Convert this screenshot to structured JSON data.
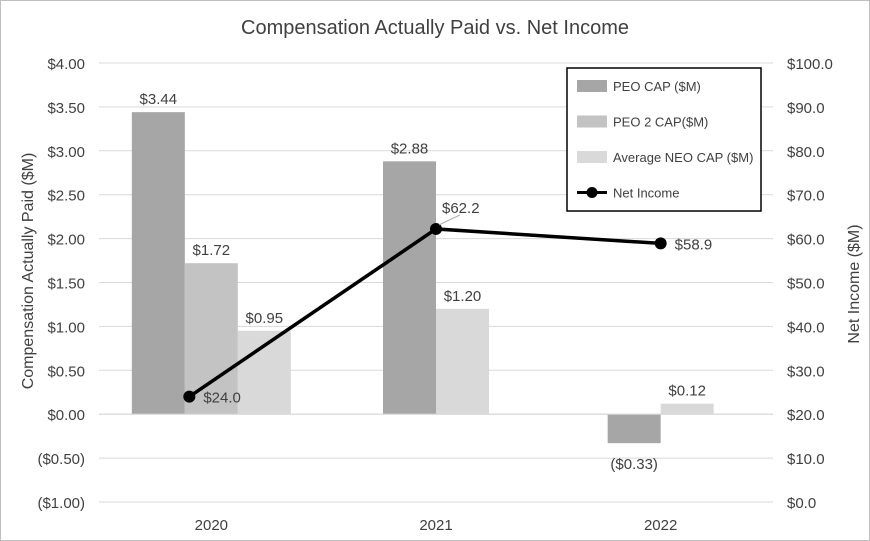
{
  "chart_data": {
    "type": "bar+line",
    "title": "Compensation Actually Paid vs. Net Income",
    "categories": [
      "2020",
      "2021",
      "2022"
    ],
    "y_left": {
      "label": "Compensation Actually Paid ($M)",
      "range": [
        -1.0,
        4.0
      ],
      "ticks": [
        4.0,
        3.5,
        3.0,
        2.5,
        2.0,
        1.5,
        1.0,
        0.5,
        0.0,
        -0.5,
        -1.0
      ],
      "tick_labels": [
        "$4.00",
        "$3.50",
        "$3.00",
        "$2.50",
        "$2.00",
        "$1.50",
        "$1.00",
        "$0.50",
        "$0.00",
        "($0.50)",
        "($1.00)"
      ]
    },
    "y_right": {
      "label": "Net Income ($M)",
      "range": [
        0,
        100
      ],
      "ticks": [
        100,
        90,
        80,
        70,
        60,
        50,
        40,
        30,
        20,
        10,
        0
      ],
      "tick_labels": [
        "$100.0",
        "$90.0",
        "$80.0",
        "$70.0",
        "$60.0",
        "$50.0",
        "$40.0",
        "$30.0",
        "$20.0",
        "$10.0",
        "$0.0"
      ]
    },
    "bar_series": [
      {
        "name": "PEO CAP ($M)",
        "color": "#a6a6a6",
        "values": [
          3.44,
          2.88,
          -0.33
        ],
        "labels": [
          "$3.44",
          "$2.88",
          "($0.33)"
        ]
      },
      {
        "name": "PEO 2 CAP($M)",
        "color": "#c3c3c3",
        "values": [
          1.72,
          null,
          null
        ],
        "labels": [
          "$1.72",
          "",
          ""
        ]
      },
      {
        "name": "Average NEO CAP ($M)",
        "color": "#d9d9d9",
        "values": [
          0.95,
          1.2,
          0.12
        ],
        "labels": [
          "$0.95",
          "$1.20",
          "$0.12"
        ]
      }
    ],
    "line_series": {
      "name": "Net Income",
      "color": "#000000",
      "values": [
        24.0,
        62.2,
        58.9
      ],
      "labels": [
        "$24.0",
        "$62.2",
        "$58.9"
      ]
    },
    "legend": [
      "PEO CAP ($M)",
      "PEO 2 CAP($M)",
      "Average NEO CAP ($M)",
      "Net Income"
    ],
    "legend_position": "top-right",
    "gridlines": true
  }
}
